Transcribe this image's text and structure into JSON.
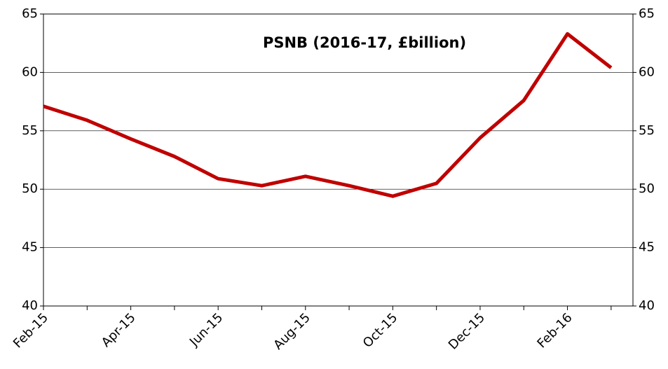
{
  "chart_data": {
    "type": "line",
    "title": "PSNB (2016-17, £billion)",
    "categories": [
      "Feb-15",
      null,
      "Apr-15",
      null,
      "Jun-15",
      null,
      "Aug-15",
      null,
      "Oct-15",
      null,
      "Dec-15",
      null,
      "Feb-16",
      null
    ],
    "series": [
      {
        "name": "PSNB",
        "color": "#c00000",
        "values": [
          57.1,
          55.9,
          54.3,
          52.8,
          50.9,
          50.3,
          51.1,
          50.3,
          49.4,
          50.5,
          54.4,
          57.6,
          63.3,
          60.4
        ]
      }
    ],
    "ylim": [
      40,
      65
    ],
    "yticks": [
      40,
      45,
      50,
      55,
      60,
      65
    ],
    "y2lim": [
      40,
      65
    ],
    "y2ticks": [
      40,
      45,
      50,
      55,
      60,
      65
    ],
    "grid": true
  }
}
